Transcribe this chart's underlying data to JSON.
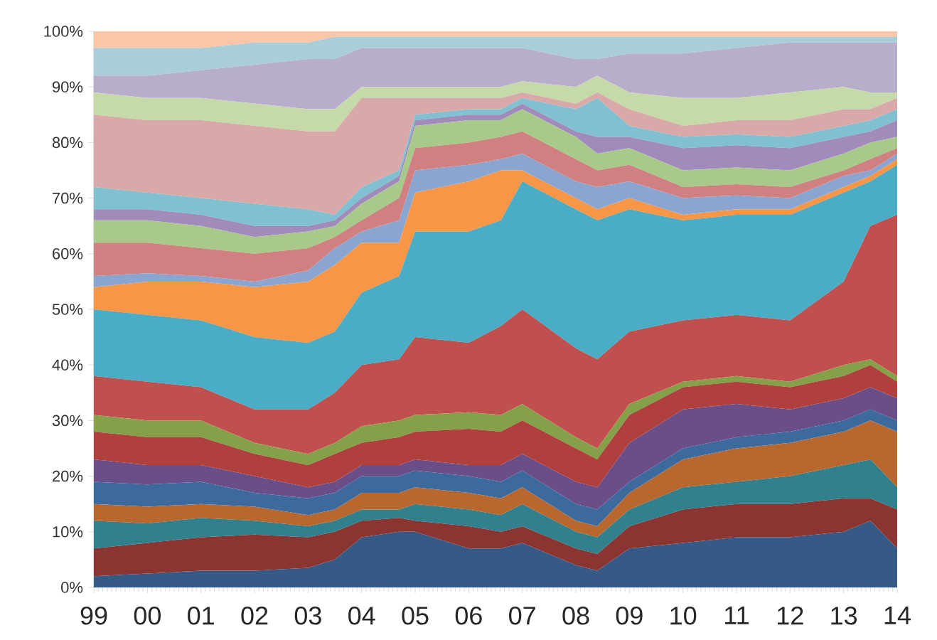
{
  "chart_data": {
    "type": "area",
    "stacked": true,
    "x": [
      1999,
      2000,
      2001,
      2002,
      2003,
      2003.5,
      2004,
      2004.7,
      2005,
      2006,
      2006.6,
      2007,
      2008,
      2008.4,
      2009,
      2010,
      2011,
      2012,
      2013,
      2013.5,
      2014
    ],
    "xlim": [
      1999,
      2014
    ],
    "xticks": [
      {
        "value": 1999,
        "label": "99"
      },
      {
        "value": 2000,
        "label": "00"
      },
      {
        "value": 2001,
        "label": "01"
      },
      {
        "value": 2002,
        "label": "02"
      },
      {
        "value": 2003,
        "label": "03"
      },
      {
        "value": 2004,
        "label": "04"
      },
      {
        "value": 2005,
        "label": "05"
      },
      {
        "value": 2006,
        "label": "06"
      },
      {
        "value": 2007,
        "label": "07"
      },
      {
        "value": 2008,
        "label": "08"
      },
      {
        "value": 2009,
        "label": "09"
      },
      {
        "value": 2010,
        "label": "10"
      },
      {
        "value": 2011,
        "label": "11"
      },
      {
        "value": 2012,
        "label": "12"
      },
      {
        "value": 2013,
        "label": "13"
      },
      {
        "value": 2014,
        "label": "14"
      }
    ],
    "ylim": [
      0,
      100
    ],
    "yticks": [
      {
        "value": 0,
        "label": "0%"
      },
      {
        "value": 10,
        "label": "10%"
      },
      {
        "value": 20,
        "label": "20%"
      },
      {
        "value": 30,
        "label": "30%"
      },
      {
        "value": 40,
        "label": "40%"
      },
      {
        "value": 50,
        "label": "50%"
      },
      {
        "value": 60,
        "label": "60%"
      },
      {
        "value": 70,
        "label": "70%"
      },
      {
        "value": 80,
        "label": "80%"
      },
      {
        "value": 90,
        "label": "90%"
      },
      {
        "value": 100,
        "label": "100%"
      }
    ],
    "grid": false,
    "series": [
      {
        "color": "#355a85",
        "values": [
          2,
          2.5,
          3,
          3,
          3.5,
          5,
          9,
          10,
          10,
          7,
          7,
          8,
          4,
          3,
          7,
          8,
          9,
          9,
          10,
          12,
          7
        ]
      },
      {
        "color": "#8b3533",
        "values": [
          5,
          5.5,
          6,
          6.5,
          5.5,
          5,
          3,
          2.5,
          2,
          4,
          3,
          3,
          3,
          3,
          4,
          6,
          6,
          6,
          6,
          4,
          7
        ]
      },
      {
        "color": "#31808e",
        "values": [
          5,
          3.5,
          3.5,
          2.5,
          2,
          2,
          2,
          1.5,
          3,
          3,
          3,
          4,
          3,
          3,
          3,
          4,
          4,
          5,
          6,
          7,
          4
        ]
      },
      {
        "color": "#b8682f",
        "values": [
          3,
          3,
          2.5,
          2.5,
          2,
          2,
          3,
          3,
          3,
          3,
          3,
          3,
          2,
          2,
          3,
          5,
          6,
          6,
          6,
          7,
          10
        ]
      },
      {
        "color": "#3d6a9c",
        "values": [
          4,
          4,
          4,
          2.5,
          3,
          3,
          3,
          3,
          3,
          3,
          3,
          3,
          3,
          3,
          2,
          2,
          2,
          2,
          2,
          2,
          2
        ]
      },
      {
        "color": "#6a4e88",
        "values": [
          4,
          3.5,
          3,
          3,
          2,
          2,
          2,
          2,
          2,
          2,
          3,
          3,
          4,
          4,
          7,
          7,
          6,
          4,
          4,
          4,
          4
        ]
      },
      {
        "color": "#b0403e",
        "values": [
          5,
          5,
          5,
          4,
          4,
          5,
          4,
          5,
          5,
          6.5,
          6,
          6,
          6,
          5,
          5,
          4,
          4,
          4,
          4,
          4,
          3
        ]
      },
      {
        "color": "#86a04a",
        "values": [
          3,
          3,
          3,
          2,
          2,
          2,
          3,
          3,
          3,
          3,
          3,
          3,
          2,
          2,
          2,
          1,
          1,
          1,
          2,
          1,
          1
        ]
      },
      {
        "color": "#c0504d",
        "values": [
          7,
          7,
          6,
          6,
          8,
          9,
          11,
          11,
          14,
          12.5,
          16,
          17,
          16,
          16,
          13,
          11,
          11,
          11,
          15,
          24,
          29
        ]
      },
      {
        "color": "#4bacc6",
        "values": [
          12,
          12,
          12,
          13,
          12,
          11,
          13,
          15,
          19,
          20,
          19,
          23,
          25,
          25,
          22,
          18,
          18,
          19,
          16,
          8,
          9
        ]
      },
      {
        "color": "#f79646",
        "values": [
          4,
          6,
          7,
          9,
          11,
          12,
          9,
          6,
          7,
          9,
          9,
          2,
          2,
          2,
          2,
          1,
          1,
          1,
          1,
          1,
          1
        ]
      },
      {
        "color": "#8aa5cf",
        "values": [
          2,
          1.5,
          1,
          1,
          2,
          3,
          2,
          4,
          4,
          3,
          2,
          3,
          3,
          4,
          3,
          3,
          2.5,
          2,
          2,
          1,
          1
        ]
      },
      {
        "color": "#d08080",
        "values": [
          6,
          5.5,
          5,
          5,
          4,
          2,
          2,
          4,
          4,
          4,
          4,
          4,
          4,
          3,
          3,
          2,
          2,
          2,
          1,
          2,
          1
        ]
      },
      {
        "color": "#a9c98a",
        "values": [
          4,
          4,
          4,
          3,
          3,
          2,
          3,
          3,
          4,
          4,
          3,
          4,
          4,
          3,
          3,
          3,
          3,
          3,
          3,
          3,
          2
        ]
      },
      {
        "color": "#a08bbb",
        "values": [
          2,
          2,
          2,
          2,
          1,
          1,
          1,
          1,
          1,
          1,
          1,
          1,
          1,
          3,
          2,
          4,
          4,
          4,
          3,
          2,
          3
        ]
      },
      {
        "color": "#80c0d0",
        "values": [
          4,
          3,
          3,
          4,
          3,
          1,
          2,
          1,
          1,
          1,
          1,
          1,
          4,
          7,
          2,
          2,
          2,
          2,
          2,
          2,
          2
        ]
      },
      {
        "color": "#d9a8a8",
        "values": [
          13,
          13,
          14,
          14,
          14,
          15,
          16,
          13,
          3,
          2,
          2,
          1,
          1,
          1,
          3,
          2,
          2.5,
          3,
          3,
          2,
          2
        ]
      },
      {
        "color": "#c6d9a8",
        "values": [
          4,
          4,
          4,
          4,
          4,
          4,
          2,
          2,
          2,
          2,
          2,
          2,
          3,
          3,
          3,
          5,
          4,
          5,
          4,
          3,
          1
        ]
      },
      {
        "color": "#b8aecb",
        "values": [
          3,
          4,
          5,
          7,
          9,
          9,
          7,
          7,
          7,
          7,
          7,
          6,
          5,
          3,
          7,
          8,
          9,
          9,
          8,
          9,
          9
        ]
      },
      {
        "color": "#a9ceda",
        "values": [
          5,
          5,
          4,
          4,
          3,
          4,
          2,
          2,
          2,
          2,
          2,
          2,
          4,
          4,
          3,
          3,
          2,
          1,
          1,
          1,
          1
        ]
      },
      {
        "color": "#f9c6a8",
        "values": [
          3,
          3,
          3,
          2,
          2,
          1,
          1,
          1,
          1,
          1,
          1,
          1,
          1,
          1,
          1,
          1,
          1,
          1,
          1,
          1,
          1
        ]
      }
    ]
  }
}
